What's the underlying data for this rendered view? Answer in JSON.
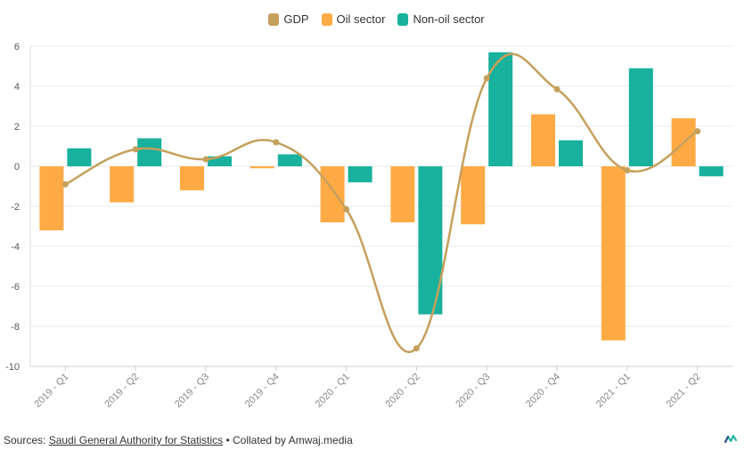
{
  "chart_data": {
    "type": "bar",
    "categories": [
      "2019 - Q1",
      "2019 - Q2",
      "2019 - Q3",
      "2019 - Q4",
      "2020 - Q1",
      "2020 - Q2",
      "2020 - Q3",
      "2020 - Q4",
      "2021 - Q1",
      "2021 - Q2"
    ],
    "series": [
      {
        "name": "GDP",
        "kind": "line",
        "color": "#C5A05C",
        "values": [
          -0.9,
          0.85,
          0.35,
          1.2,
          -2.15,
          -9.1,
          4.4,
          3.85,
          -0.2,
          1.75
        ]
      },
      {
        "name": "Oil sector",
        "kind": "bar",
        "color": "#FFAA45",
        "values": [
          -3.2,
          -1.8,
          -1.2,
          -0.1,
          -2.8,
          -2.8,
          -2.9,
          2.6,
          -8.7,
          2.4
        ]
      },
      {
        "name": "Non-oil sector",
        "kind": "bar",
        "color": "#17B19D",
        "values": [
          0.9,
          1.4,
          0.5,
          0.6,
          -0.8,
          -7.4,
          5.7,
          1.3,
          4.9,
          -0.5
        ]
      }
    ],
    "ylim": [
      -10,
      6
    ],
    "yticks": [
      6,
      4,
      2,
      0,
      -2,
      -4,
      -6,
      -8,
      -10
    ],
    "grid": true,
    "legend_position": "top-center"
  },
  "footer": {
    "prefix": "Sources: ",
    "link": "Saudi General Authority for Statistics",
    "suffix": " • Collated by Amwaj.media"
  },
  "logo_icon": "amwaj-logo-icon"
}
